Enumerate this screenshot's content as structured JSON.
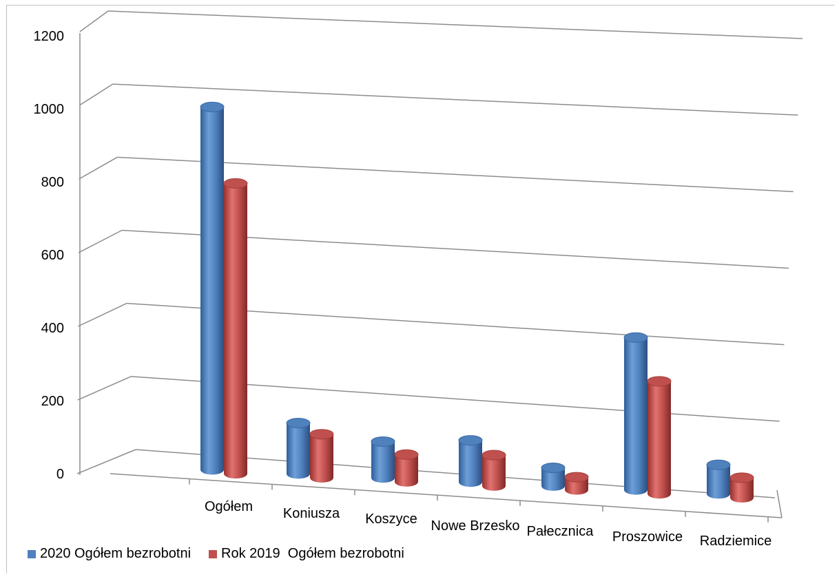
{
  "chart_data": {
    "type": "bar",
    "style": "3d-cylinder",
    "categories": [
      "Ogółem",
      "Koniusza",
      "Koszyce",
      "Nowe Brzesko",
      "Pałecznica",
      "Proszowice",
      "Radziemice"
    ],
    "series": [
      {
        "name": "2020 Ogółem bezrobotni",
        "color": "#4f81bd",
        "values": [
          1000,
          140,
          100,
          115,
          50,
          420,
          80
        ]
      },
      {
        "name": "Rok 2019  Ogółem bezrobotni",
        "color": "#c0504d",
        "values": [
          800,
          120,
          75,
          85,
          35,
          310,
          55
        ]
      }
    ],
    "y_ticks": [
      "0",
      "200",
      "400",
      "600",
      "800",
      "1000",
      "1200"
    ],
    "ylim": [
      0,
      1200
    ],
    "grid": true,
    "legend_position": "bottom-left",
    "title": "",
    "xlabel": "",
    "ylabel": ""
  }
}
